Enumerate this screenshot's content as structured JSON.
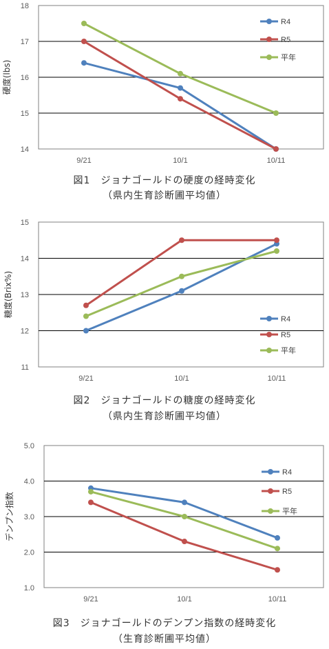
{
  "chart_data": [
    {
      "type": "line",
      "categories": [
        "9/21",
        "10/1",
        "10/11"
      ],
      "ylabel": "硬度(lbs)",
      "ylim": [
        14,
        18
      ],
      "yticks": [
        "14",
        "15",
        "16",
        "17",
        "18"
      ],
      "grid": true,
      "legend_position": "right",
      "series": [
        {
          "name": "R4",
          "values": [
            16.4,
            15.7,
            14.0
          ],
          "color": "#4F81BD"
        },
        {
          "name": "R5",
          "values": [
            17.0,
            15.4,
            14.0
          ],
          "color": "#C0504D"
        },
        {
          "name": "平年",
          "values": [
            17.5,
            16.1,
            15.0
          ],
          "color": "#9BBB59"
        }
      ],
      "caption_line1": "図1　ジョナゴールドの硬度の経時変化",
      "caption_line2": "（県内生育診断圃平均値）"
    },
    {
      "type": "line",
      "categories": [
        "9/21",
        "10/1",
        "10/11"
      ],
      "ylabel": "糖度(Brix%)",
      "ylim": [
        11,
        15
      ],
      "yticks": [
        "11",
        "12",
        "13",
        "14",
        "15"
      ],
      "grid": true,
      "legend_position": "right",
      "series": [
        {
          "name": "R4",
          "values": [
            12.0,
            13.1,
            14.4
          ],
          "color": "#4F81BD"
        },
        {
          "name": "R5",
          "values": [
            12.7,
            14.5,
            14.5
          ],
          "color": "#C0504D"
        },
        {
          "name": "平年",
          "values": [
            12.4,
            13.5,
            14.2
          ],
          "color": "#9BBB59"
        }
      ],
      "caption_line1": "図2　ジョナゴールドの糖度の経時変化",
      "caption_line2": "（県内生育診断圃平均値）"
    },
    {
      "type": "line",
      "categories": [
        "9/21",
        "10/1",
        "10/11"
      ],
      "ylabel": "デンプン指数",
      "ylim": [
        1.0,
        5.0
      ],
      "yticks": [
        "1.0",
        "2.0",
        "3.0",
        "4.0",
        "5.0"
      ],
      "grid": true,
      "legend_position": "right",
      "series": [
        {
          "name": "R4",
          "values": [
            3.8,
            3.4,
            2.4
          ],
          "color": "#4F81BD"
        },
        {
          "name": "R5",
          "values": [
            3.4,
            2.3,
            1.5
          ],
          "color": "#C0504D"
        },
        {
          "name": "平年",
          "values": [
            3.7,
            3.0,
            2.1
          ],
          "color": "#9BBB59"
        }
      ],
      "caption_line1": "図3　ジョナゴールドのデンプン指数の経時変化",
      "caption_line2": "（生育診断圃平均値）"
    }
  ]
}
